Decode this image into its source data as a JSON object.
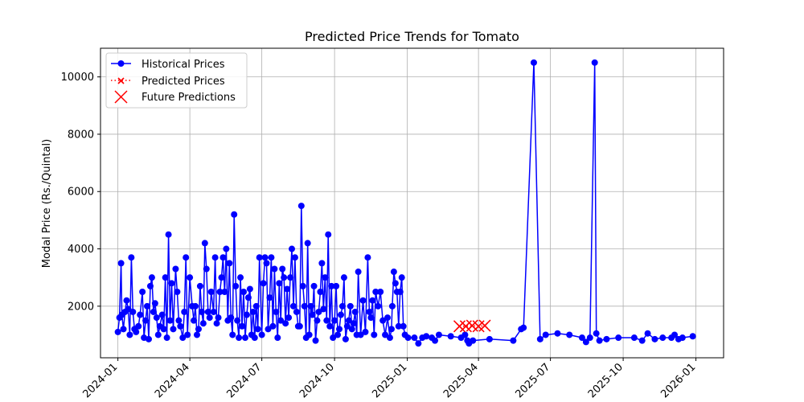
{
  "chart_data": {
    "type": "line",
    "title": "Predicted Price Trends for Tomato",
    "xlabel": "",
    "ylabel": "Modal Price (Rs./Quintal)",
    "x_ticks": [
      "2024-01",
      "2024-04",
      "2024-07",
      "2024-10",
      "2025-01",
      "2025-04",
      "2025-07",
      "2025-10",
      "2026-01"
    ],
    "y_ticks": [
      2000,
      4000,
      6000,
      8000,
      10000
    ],
    "xlim": [
      "2023-12-10",
      "2026-02-05"
    ],
    "ylim": [
      200,
      11000
    ],
    "grid": true,
    "legend_position": "top-left",
    "colors": {
      "historical": "#0000ff",
      "predicted": "#ff0000",
      "future": "#ff0000"
    },
    "series": [
      {
        "name": "Historical Prices",
        "style": "line-marker",
        "points": [
          [
            "2024-01-01",
            1100
          ],
          [
            "2024-01-03",
            1600
          ],
          [
            "2024-01-05",
            3500
          ],
          [
            "2024-01-06",
            1700
          ],
          [
            "2024-01-08",
            1200
          ],
          [
            "2024-01-10",
            1800
          ],
          [
            "2024-01-12",
            2200
          ],
          [
            "2024-01-14",
            1900
          ],
          [
            "2024-01-16",
            1000
          ],
          [
            "2024-01-18",
            3700
          ],
          [
            "2024-01-20",
            1800
          ],
          [
            "2024-01-22",
            1200
          ],
          [
            "2024-01-24",
            1100
          ],
          [
            "2024-01-27",
            1300
          ],
          [
            "2024-01-29",
            1700
          ],
          [
            "2024-02-01",
            2500
          ],
          [
            "2024-02-03",
            900
          ],
          [
            "2024-02-05",
            1500
          ],
          [
            "2024-02-07",
            2000
          ],
          [
            "2024-02-09",
            850
          ],
          [
            "2024-02-11",
            2700
          ],
          [
            "2024-02-13",
            3000
          ],
          [
            "2024-02-15",
            1800
          ],
          [
            "2024-02-17",
            2100
          ],
          [
            "2024-02-19",
            1600
          ],
          [
            "2024-02-21",
            1000
          ],
          [
            "2024-02-23",
            1300
          ],
          [
            "2024-02-26",
            1700
          ],
          [
            "2024-02-28",
            1200
          ],
          [
            "2024-03-01",
            3000
          ],
          [
            "2024-03-03",
            900
          ],
          [
            "2024-03-05",
            4500
          ],
          [
            "2024-03-07",
            1500
          ],
          [
            "2024-03-09",
            2800
          ],
          [
            "2024-03-11",
            1200
          ],
          [
            "2024-03-14",
            3300
          ],
          [
            "2024-03-16",
            2500
          ],
          [
            "2024-03-18",
            1500
          ],
          [
            "2024-03-20",
            1300
          ],
          [
            "2024-03-23",
            900
          ],
          [
            "2024-03-25",
            1800
          ],
          [
            "2024-03-27",
            3700
          ],
          [
            "2024-03-29",
            1000
          ],
          [
            "2024-04-01",
            3000
          ],
          [
            "2024-04-04",
            2000
          ],
          [
            "2024-04-06",
            1500
          ],
          [
            "2024-04-08",
            2000
          ],
          [
            "2024-04-10",
            1000
          ],
          [
            "2024-04-12",
            1200
          ],
          [
            "2024-04-14",
            2700
          ],
          [
            "2024-04-16",
            1800
          ],
          [
            "2024-04-18",
            1400
          ],
          [
            "2024-04-20",
            4200
          ],
          [
            "2024-04-22",
            3300
          ],
          [
            "2024-04-24",
            1800
          ],
          [
            "2024-04-26",
            1600
          ],
          [
            "2024-04-28",
            2500
          ],
          [
            "2024-05-01",
            1800
          ],
          [
            "2024-05-03",
            3700
          ],
          [
            "2024-05-05",
            1400
          ],
          [
            "2024-05-07",
            1600
          ],
          [
            "2024-05-09",
            2500
          ],
          [
            "2024-05-11",
            3000
          ],
          [
            "2024-05-13",
            3700
          ],
          [
            "2024-05-15",
            2500
          ],
          [
            "2024-05-17",
            4000
          ],
          [
            "2024-05-19",
            1500
          ],
          [
            "2024-05-21",
            3500
          ],
          [
            "2024-05-23",
            1600
          ],
          [
            "2024-05-25",
            1000
          ],
          [
            "2024-05-27",
            5200
          ],
          [
            "2024-05-29",
            2700
          ],
          [
            "2024-05-31",
            1500
          ],
          [
            "2024-06-02",
            900
          ],
          [
            "2024-06-04",
            3000
          ],
          [
            "2024-06-06",
            1300
          ],
          [
            "2024-06-08",
            2500
          ],
          [
            "2024-06-10",
            900
          ],
          [
            "2024-06-12",
            1700
          ],
          [
            "2024-06-14",
            2300
          ],
          [
            "2024-06-16",
            2600
          ],
          [
            "2024-06-18",
            1000
          ],
          [
            "2024-06-20",
            1800
          ],
          [
            "2024-06-22",
            900
          ],
          [
            "2024-06-24",
            2000
          ],
          [
            "2024-06-26",
            1200
          ],
          [
            "2024-06-28",
            3700
          ],
          [
            "2024-07-01",
            1000
          ],
          [
            "2024-07-03",
            2800
          ],
          [
            "2024-07-05",
            3700
          ],
          [
            "2024-07-07",
            3500
          ],
          [
            "2024-07-09",
            1200
          ],
          [
            "2024-07-11",
            2300
          ],
          [
            "2024-07-13",
            3700
          ],
          [
            "2024-07-15",
            1300
          ],
          [
            "2024-07-17",
            3300
          ],
          [
            "2024-07-19",
            1800
          ],
          [
            "2024-07-21",
            900
          ],
          [
            "2024-07-23",
            2800
          ],
          [
            "2024-07-25",
            1500
          ],
          [
            "2024-07-27",
            3300
          ],
          [
            "2024-07-29",
            3000
          ],
          [
            "2024-07-31",
            1400
          ],
          [
            "2024-08-02",
            2600
          ],
          [
            "2024-08-04",
            1600
          ],
          [
            "2024-08-06",
            3000
          ],
          [
            "2024-08-08",
            4000
          ],
          [
            "2024-08-10",
            2000
          ],
          [
            "2024-08-12",
            3700
          ],
          [
            "2024-08-14",
            1800
          ],
          [
            "2024-08-16",
            1300
          ],
          [
            "2024-08-18",
            1300
          ],
          [
            "2024-08-20",
            5500
          ],
          [
            "2024-08-22",
            2700
          ],
          [
            "2024-08-24",
            2000
          ],
          [
            "2024-08-26",
            900
          ],
          [
            "2024-08-28",
            4200
          ],
          [
            "2024-08-30",
            1000
          ],
          [
            "2024-09-01",
            2000
          ],
          [
            "2024-09-03",
            1700
          ],
          [
            "2024-09-05",
            2700
          ],
          [
            "2024-09-07",
            800
          ],
          [
            "2024-09-09",
            1500
          ],
          [
            "2024-09-11",
            1800
          ],
          [
            "2024-09-13",
            2500
          ],
          [
            "2024-09-15",
            3500
          ],
          [
            "2024-09-17",
            1900
          ],
          [
            "2024-09-19",
            3000
          ],
          [
            "2024-09-21",
            1500
          ],
          [
            "2024-09-23",
            4500
          ],
          [
            "2024-09-25",
            1300
          ],
          [
            "2024-09-27",
            2700
          ],
          [
            "2024-09-29",
            900
          ],
          [
            "2024-10-01",
            1500
          ],
          [
            "2024-10-03",
            2700
          ],
          [
            "2024-10-05",
            1000
          ],
          [
            "2024-10-07",
            1200
          ],
          [
            "2024-10-09",
            1700
          ],
          [
            "2024-10-11",
            2000
          ],
          [
            "2024-10-13",
            3000
          ],
          [
            "2024-10-15",
            850
          ],
          [
            "2024-10-17",
            1300
          ],
          [
            "2024-10-19",
            1500
          ],
          [
            "2024-10-21",
            2000
          ],
          [
            "2024-10-23",
            1200
          ],
          [
            "2024-10-25",
            1400
          ],
          [
            "2024-10-27",
            1800
          ],
          [
            "2024-10-29",
            1000
          ],
          [
            "2024-10-31",
            3200
          ],
          [
            "2024-11-03",
            1000
          ],
          [
            "2024-11-06",
            2200
          ],
          [
            "2024-11-09",
            1100
          ],
          [
            "2024-11-12",
            3700
          ],
          [
            "2024-11-14",
            1800
          ],
          [
            "2024-11-16",
            1600
          ],
          [
            "2024-11-18",
            2200
          ],
          [
            "2024-11-20",
            1000
          ],
          [
            "2024-11-22",
            2500
          ],
          [
            "2024-11-25",
            2000
          ],
          [
            "2024-11-28",
            2500
          ],
          [
            "2024-12-01",
            1500
          ],
          [
            "2024-12-04",
            1000
          ],
          [
            "2024-12-07",
            1600
          ],
          [
            "2024-12-10",
            900
          ],
          [
            "2024-12-12",
            1200
          ],
          [
            "2024-12-13",
            2000
          ],
          [
            "2024-12-15",
            3200
          ],
          [
            "2024-12-17",
            2800
          ],
          [
            "2024-12-19",
            2500
          ],
          [
            "2024-12-21",
            1300
          ],
          [
            "2024-12-23",
            2500
          ],
          [
            "2024-12-25",
            3000
          ],
          [
            "2024-12-27",
            1300
          ],
          [
            "2024-12-29",
            1000
          ],
          [
            "2025-01-02",
            900
          ],
          [
            "2025-01-10",
            900
          ],
          [
            "2025-01-15",
            700
          ],
          [
            "2025-01-20",
            900
          ],
          [
            "2025-01-25",
            950
          ],
          [
            "2025-02-01",
            900
          ],
          [
            "2025-02-05",
            800
          ],
          [
            "2025-02-10",
            1000
          ],
          [
            "2025-02-25",
            950
          ],
          [
            "2025-03-10",
            900
          ],
          [
            "2025-03-15",
            1000
          ],
          [
            "2025-03-18",
            800
          ],
          [
            "2025-03-20",
            700
          ],
          [
            "2025-03-25",
            800
          ],
          [
            "2025-04-15",
            850
          ],
          [
            "2025-05-15",
            800
          ],
          [
            "2025-05-25",
            1200
          ],
          [
            "2025-05-28",
            1250
          ],
          [
            "2025-06-10",
            10500
          ],
          [
            "2025-06-18",
            850
          ],
          [
            "2025-06-25",
            1000
          ],
          [
            "2025-07-10",
            1050
          ],
          [
            "2025-07-25",
            1000
          ],
          [
            "2025-08-10",
            900
          ],
          [
            "2025-08-15",
            750
          ],
          [
            "2025-08-20",
            900
          ],
          [
            "2025-08-26",
            10500
          ],
          [
            "2025-08-28",
            1050
          ],
          [
            "2025-09-01",
            800
          ],
          [
            "2025-09-10",
            850
          ],
          [
            "2025-09-25",
            900
          ],
          [
            "2025-10-15",
            900
          ],
          [
            "2025-10-25",
            800
          ],
          [
            "2025-11-01",
            1050
          ],
          [
            "2025-11-10",
            850
          ],
          [
            "2025-11-20",
            900
          ],
          [
            "2025-12-01",
            900
          ],
          [
            "2025-12-05",
            1000
          ],
          [
            "2025-12-10",
            850
          ],
          [
            "2025-12-15",
            900
          ],
          [
            "2025-12-28",
            950
          ]
        ]
      },
      {
        "name": "Predicted Prices",
        "style": "dotted-x",
        "points": [
          [
            "2025-03-08",
            1300
          ],
          [
            "2025-03-16",
            1300
          ],
          [
            "2025-03-24",
            1320
          ],
          [
            "2025-04-01",
            1300
          ],
          [
            "2025-04-09",
            1320
          ]
        ]
      },
      {
        "name": "Future Predictions",
        "style": "large-x",
        "points": [
          [
            "2025-03-08",
            1300
          ],
          [
            "2025-03-16",
            1300
          ],
          [
            "2025-03-24",
            1320
          ],
          [
            "2025-04-01",
            1300
          ],
          [
            "2025-04-09",
            1320
          ]
        ]
      }
    ]
  }
}
